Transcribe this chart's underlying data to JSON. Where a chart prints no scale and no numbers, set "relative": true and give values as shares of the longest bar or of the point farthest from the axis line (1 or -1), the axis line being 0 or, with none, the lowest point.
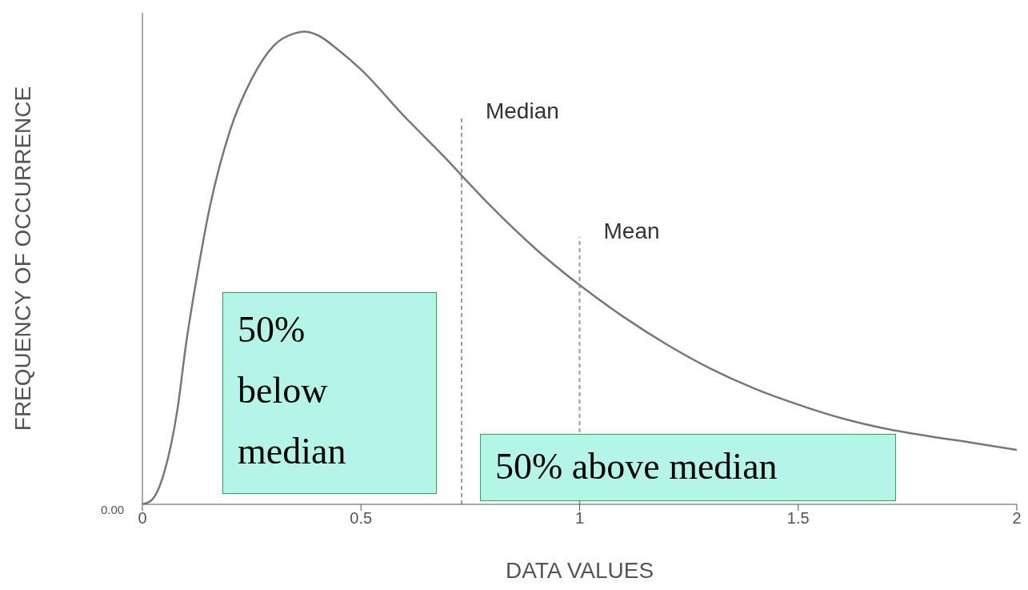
{
  "chart_data": {
    "type": "line",
    "xlabel": "DATA VALUES",
    "ylabel": "FREQUENCY OF OCCURRENCE",
    "relative": true,
    "x": [
      0,
      0.02,
      0.05,
      0.08,
      0.1,
      0.13,
      0.15,
      0.2,
      0.25,
      0.3,
      0.35,
      0.37,
      0.4,
      0.45,
      0.5,
      0.6,
      0.7,
      0.73,
      0.8,
      0.9,
      1.0,
      1.1,
      1.2,
      1.3,
      1.4,
      1.5,
      1.6,
      1.7,
      1.8,
      1.9,
      2.0
    ],
    "values": [
      0,
      0.008,
      0.068,
      0.2,
      0.34,
      0.51,
      0.61,
      0.79,
      0.9,
      0.97,
      0.997,
      1,
      0.993,
      0.96,
      0.92,
      0.82,
      0.726,
      0.696,
      0.628,
      0.54,
      0.464,
      0.397,
      0.338,
      0.287,
      0.245,
      0.211,
      0.182,
      0.16,
      0.144,
      0.13,
      0.115
    ],
    "color": "#777777",
    "xlim": [
      0,
      2
    ],
    "xticks": [
      0,
      0.5,
      1,
      1.5,
      2
    ],
    "marker": "none",
    "line_style": "solid",
    "ref_lines": [
      {
        "axis": "x",
        "value": 0.73,
        "label": "Median",
        "color": "#999999",
        "line_style": "dashed"
      },
      {
        "axis": "x",
        "value": 1.0,
        "label": "Mean",
        "color": "#999999",
        "line_style": "dashed"
      }
    ],
    "annotations": [
      "0.00",
      "50% below median",
      "50% above median"
    ]
  }
}
